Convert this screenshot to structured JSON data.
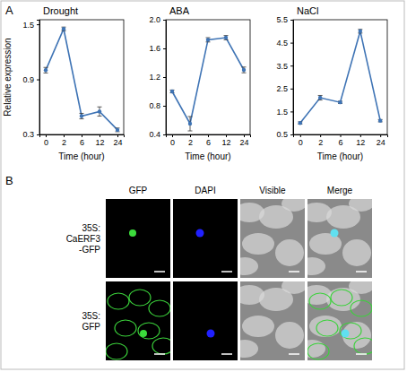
{
  "chart_data": [
    {
      "type": "line",
      "title": "Drought",
      "x_label": "Time (hour)",
      "y_label": "Relative expression",
      "categories": [
        "0",
        "2",
        "6",
        "12",
        "24"
      ],
      "values": [
        1.0,
        1.45,
        0.5,
        0.55,
        0.35
      ],
      "errors": [
        0.03,
        0.02,
        0.03,
        0.05,
        0.02
      ],
      "color": "#3f74b5",
      "marker": "circle",
      "ylim": [
        0.3,
        1.55
      ],
      "yticks": [
        0.3,
        0.9,
        1.5
      ]
    },
    {
      "type": "line",
      "title": "ABA",
      "x_label": "Time (hour)",
      "categories": [
        "0",
        "2",
        "6",
        "12",
        "24"
      ],
      "values": [
        1.0,
        0.55,
        1.72,
        1.75,
        1.3
      ],
      "errors": [
        0.02,
        0.1,
        0.03,
        0.03,
        0.04
      ],
      "color": "#3f74b5",
      "marker": "circle",
      "ylim": [
        0.4,
        2.0
      ],
      "yticks": [
        0.4,
        0.8,
        1.2,
        1.6,
        {
          "value": 2,
          "label": "2.0"
        }
      ]
    },
    {
      "type": "line",
      "title": "NaCl",
      "x_label": "Time (hour)",
      "categories": [
        "0",
        "2",
        "6",
        "12",
        "24"
      ],
      "values": [
        1.0,
        2.1,
        1.9,
        5.0,
        1.1
      ],
      "errors": [
        0.05,
        0.1,
        0.05,
        0.08,
        0.05
      ],
      "color": "#3f74b5",
      "marker": "circle",
      "ylim": [
        0.5,
        5.5
      ],
      "yticks": [
        0.5,
        1.5,
        2.5,
        3.5,
        4.5,
        5.5
      ]
    }
  ],
  "panel_labels": [
    "A",
    "B"
  ],
  "panel_b": {
    "columns": [
      "GFP",
      "DAPI",
      "Visible",
      "Merge"
    ],
    "rows": [
      [
        "35S:",
        "CaERF3",
        "-GFP"
      ],
      [
        "35S:",
        "GFP"
      ]
    ]
  }
}
